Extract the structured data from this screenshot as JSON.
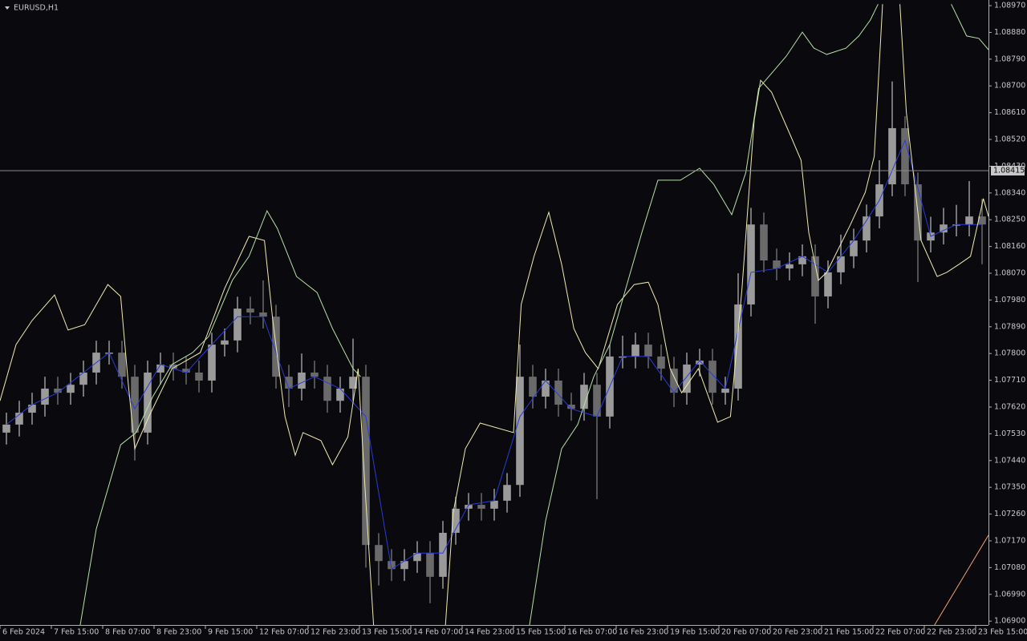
{
  "chart_data": {
    "type": "candlestick",
    "symbol": "EURUSD,H1",
    "open": [
      1.07534,
      1.07561,
      1.07601,
      1.07628,
      1.07682,
      1.07668,
      1.07695,
      1.07736,
      1.07803,
      1.07803,
      1.07722,
      1.07534,
      1.07736,
      1.07763,
      1.07749,
      1.07736,
      1.07709,
      1.0783,
      1.07844,
      1.07951,
      1.07938,
      1.07924,
      1.07722,
      1.07682,
      1.07736,
      1.07722,
      1.07641,
      1.07682,
      1.07722,
      1.07156,
      1.07102,
      1.07075,
      1.07102,
      1.07129,
      1.07049,
      1.07197,
      1.07278,
      1.07291,
      1.07278,
      1.07305,
      1.07358,
      1.07722,
      1.07655,
      1.07709,
      1.07628,
      1.07614,
      1.07695,
      1.07588,
      1.0779,
      1.0779,
      1.0783,
      1.0779,
      1.07749,
      1.07668,
      1.07763,
      1.07776,
      1.07668,
      1.07682,
      1.07965,
      1.08234,
      1.08113,
      1.08086,
      1.081,
      1.08127,
      1.07992,
      1.08073,
      1.08127,
      1.0818,
      1.08261,
      1.08369,
      1.08558,
      1.08369,
      1.0818,
      1.08207,
      1.08234,
      1.08234,
      1.08261
    ],
    "high": [
      1.07601,
      1.07641,
      1.07668,
      1.07722,
      1.07722,
      1.07735,
      1.07776,
      1.07843,
      1.07843,
      1.07843,
      1.07762,
      1.07776,
      1.07803,
      1.07803,
      1.07789,
      1.07776,
      1.0787,
      1.07884,
      1.07991,
      1.07991,
      1.08046,
      1.07964,
      1.07762,
      1.078,
      1.07776,
      1.07762,
      1.07722,
      1.0785,
      1.07762,
      1.07196,
      1.07142,
      1.07142,
      1.07169,
      1.07169,
      1.07237,
      1.07318,
      1.07331,
      1.07331,
      1.07345,
      1.07398,
      1.0783,
      1.07762,
      1.07749,
      1.07749,
      1.07668,
      1.07735,
      1.07735,
      1.0783,
      1.0786,
      1.0787,
      1.0787,
      1.0783,
      1.07789,
      1.07803,
      1.07816,
      1.07816,
      1.07722,
      1.0807,
      1.0829,
      1.08274,
      1.08153,
      1.0814,
      1.08167,
      1.08167,
      1.08113,
      1.082,
      1.0822,
      1.08301,
      1.0845,
      1.08715,
      1.08598,
      1.08409,
      1.0826,
      1.0829,
      1.083,
      1.0838,
      1.0832
    ],
    "low": [
      1.07494,
      1.07521,
      1.07561,
      1.07588,
      1.07628,
      1.07628,
      1.07655,
      1.07696,
      1.07763,
      1.07682,
      1.0744,
      1.07494,
      1.07696,
      1.07709,
      1.07696,
      1.07669,
      1.07669,
      1.0779,
      1.07804,
      1.07898,
      1.07884,
      1.07682,
      1.0762,
      1.07642,
      1.07682,
      1.07601,
      1.07601,
      1.07642,
      1.0708,
      1.0702,
      1.07035,
      1.07035,
      1.07062,
      1.0696,
      1.07009,
      1.07157,
      1.07238,
      1.07238,
      1.07238,
      1.07265,
      1.07318,
      1.07615,
      1.07615,
      1.07588,
      1.07574,
      1.07574,
      1.0731,
      1.07548,
      1.0775,
      1.0775,
      1.0775,
      1.07709,
      1.0762,
      1.07628,
      1.07723,
      1.07628,
      1.07628,
      1.07642,
      1.07925,
      1.08073,
      1.08046,
      1.08046,
      1.0806,
      1.079,
      1.07952,
      1.08033,
      1.08087,
      1.0814,
      1.08221,
      1.08329,
      1.08329,
      1.0804,
      1.0814,
      1.08167,
      1.08194,
      1.08194,
      1.081
    ],
    "close": [
      1.07561,
      1.07601,
      1.07628,
      1.07682,
      1.07668,
      1.07695,
      1.07736,
      1.07803,
      1.07803,
      1.07722,
      1.07534,
      1.07736,
      1.07763,
      1.07749,
      1.07736,
      1.07709,
      1.0783,
      1.07844,
      1.07951,
      1.07938,
      1.07924,
      1.07722,
      1.07682,
      1.07736,
      1.07722,
      1.07641,
      1.07682,
      1.07722,
      1.07156,
      1.07102,
      1.07075,
      1.07102,
      1.07129,
      1.07049,
      1.07197,
      1.07278,
      1.07291,
      1.07278,
      1.07305,
      1.07358,
      1.07722,
      1.07655,
      1.07709,
      1.07628,
      1.07614,
      1.07695,
      1.07588,
      1.0779,
      1.0779,
      1.0783,
      1.0779,
      1.07749,
      1.07668,
      1.07763,
      1.07776,
      1.07668,
      1.07682,
      1.07965,
      1.08234,
      1.08113,
      1.08086,
      1.081,
      1.08127,
      1.07992,
      1.08073,
      1.08127,
      1.0818,
      1.08261,
      1.08369,
      1.08558,
      1.08369,
      1.0818,
      1.08207,
      1.08234,
      1.08234,
      1.08261,
      1.08234
    ],
    "bull_color": "#9a9a9a",
    "bear_color": "#6a6a6a",
    "series": [
      {
        "color": "#2b3ad8",
        "x": [
          0,
          2,
          4,
          6,
          8,
          10,
          12,
          14,
          16,
          18,
          20,
          22,
          24,
          26,
          28,
          30,
          32,
          34,
          36,
          38,
          40,
          42,
          44,
          46,
          48,
          50,
          52,
          54,
          56,
          58,
          60,
          62,
          64,
          66,
          68,
          70,
          72,
          74,
          76
        ],
        "values": [
          1.07561,
          1.07628,
          1.07668,
          1.07736,
          1.07803,
          1.07614,
          1.07763,
          1.07736,
          1.0783,
          1.07924,
          1.07924,
          1.07682,
          1.07722,
          1.07682,
          1.07588,
          1.07075,
          1.07129,
          1.07129,
          1.07291,
          1.07305,
          1.07588,
          1.07709,
          1.07614,
          1.07588,
          1.0779,
          1.0779,
          1.07668,
          1.07776,
          1.07682,
          1.08073,
          1.08086,
          1.08127,
          1.08073,
          1.0818,
          1.08315,
          1.08517,
          1.08194,
          1.08234,
          1.08234
        ]
      },
      {
        "color": "#f0eab0",
        "x": [
          -0.5,
          0.75,
          2,
          3.75,
          4.8,
          6.1,
          7.9,
          8.9,
          9.5,
          10,
          11.1,
          12.9,
          15.1,
          17,
          18.9,
          20.1,
          20.75,
          21.7,
          22.5,
          23.1,
          24.5,
          25.4,
          26.6,
          27.4,
          27.9,
          28.6,
          31,
          34.2,
          34.8,
          35.75,
          36.9,
          39.5,
          40.1,
          41.1,
          42.25,
          43.25,
          44.2,
          45.1,
          46.1,
          47.6,
          48.9,
          50,
          50.75,
          51.7,
          52.6,
          53.9,
          55.4,
          56.4,
          57.3,
          58.25,
          58.75,
          59.6,
          61.1,
          61.9,
          62.5,
          63.25,
          63.9,
          65.75,
          66.9,
          67.6,
          68.25,
          69,
          69.6,
          70.1,
          71.25,
          72.5,
          73.25,
          74.2,
          75.1,
          76.1,
          76.5
        ],
        "values": [
          1.07641,
          1.0783,
          1.07911,
          1.07997,
          1.07879,
          1.07897,
          1.08032,
          1.07992,
          1.07695,
          1.0748,
          1.07588,
          1.07749,
          1.07803,
          1.08019,
          1.08194,
          1.0818,
          1.07911,
          1.07588,
          1.07458,
          1.07534,
          1.07507,
          1.07426,
          1.0752,
          1.07749,
          1.07372,
          1.06887,
          null,
          1.06887,
          1.07264,
          1.0748,
          1.07566,
          1.07534,
          1.07965,
          1.08127,
          1.08275,
          1.081,
          1.07884,
          1.07803,
          1.07749,
          1.07965,
          1.08032,
          1.0804,
          1.07965,
          1.07749,
          1.07668,
          1.07749,
          1.07569,
          1.07588,
          1.08019,
          1.08585,
          1.08719,
          1.08679,
          1.08531,
          1.0845,
          1.08207,
          1.08046,
          1.08073,
          1.08234,
          1.08342,
          1.08463,
          1.08975,
          null,
          1.08975,
          1.08612,
          1.0818,
          1.08059,
          1.08073,
          1.081,
          1.08127,
          1.08321,
          1.08261
        ]
      },
      {
        "color": "#b8e0a8",
        "x": [
          5.75,
          7,
          8.9,
          10.1,
          11.4,
          12.9,
          14.5,
          15.75,
          17.6,
          18.9,
          20.3,
          21.1,
          22.6,
          24.2,
          25.4,
          27,
          27.6,
          34,
          40.75,
          42,
          43.25,
          44.5,
          45.75,
          47,
          48.25,
          49.5,
          50.75,
          52.5,
          54,
          55.1,
          56.5,
          57.6,
          58.6,
          60.75,
          62,
          62.9,
          63.9,
          65.4,
          66.4,
          67.3,
          67.9,
          70,
          73.6,
          74.8,
          75.75,
          76.5
        ],
        "values": [
          1.06887,
          1.0721,
          1.07493,
          1.07534,
          1.07655,
          1.07763,
          1.07803,
          1.07857,
          1.08046,
          1.08127,
          1.0828,
          1.08221,
          1.08059,
          1.08005,
          1.07884,
          1.07749,
          1.07722,
          null,
          1.06887,
          1.07237,
          1.0748,
          1.07561,
          1.07722,
          1.0783,
          1.08019,
          1.08207,
          1.08383,
          1.08383,
          1.08423,
          1.08369,
          1.08267,
          1.08409,
          1.08692,
          1.088,
          1.08881,
          1.08827,
          1.08806,
          1.08827,
          1.08868,
          1.08922,
          1.08975,
          null,
          1.08975,
          1.08868,
          1.0886,
          1.08822
        ]
      },
      {
        "color": "#f0a070",
        "x": [
          72.3,
          76.5
        ],
        "values": [
          1.06887,
          1.07189
        ]
      }
    ],
    "current_price": {
      "value": 1.08415,
      "label": "1.08415"
    },
    "xlim": [
      -0.5,
      76.5
    ],
    "ylim": [
      1.06887,
      1.08989
    ],
    "yticks": [
      {
        "value": 1.0897,
        "label": "1.08970"
      },
      {
        "value": 1.0888,
        "label": "1.08880"
      },
      {
        "value": 1.0879,
        "label": "1.08790"
      },
      {
        "value": 1.087,
        "label": "1.08700"
      },
      {
        "value": 1.0861,
        "label": "1.08610"
      },
      {
        "value": 1.0852,
        "label": "1.08520"
      },
      {
        "value": 1.0843,
        "label": "1.08430"
      },
      {
        "value": 1.0834,
        "label": "1.08340"
      },
      {
        "value": 1.0825,
        "label": "1.08250"
      },
      {
        "value": 1.0816,
        "label": "1.08160"
      },
      {
        "value": 1.0807,
        "label": "1.08070"
      },
      {
        "value": 1.0798,
        "label": "1.07980"
      },
      {
        "value": 1.0789,
        "label": "1.07890"
      },
      {
        "value": 1.078,
        "label": "1.07800"
      },
      {
        "value": 1.0771,
        "label": "1.07710"
      },
      {
        "value": 1.0762,
        "label": "1.07620"
      },
      {
        "value": 1.0753,
        "label": "1.07530"
      },
      {
        "value": 1.0744,
        "label": "1.07440"
      },
      {
        "value": 1.0735,
        "label": "1.07350"
      },
      {
        "value": 1.0726,
        "label": "1.07260"
      },
      {
        "value": 1.0717,
        "label": "1.07170"
      },
      {
        "value": 1.0708,
        "label": "1.07080"
      },
      {
        "value": 1.0699,
        "label": "1.06990"
      },
      {
        "value": 1.069,
        "label": "1.06900"
      }
    ],
    "xticks": [
      {
        "value": -0.5,
        "label": "6 Feb 2024"
      },
      {
        "value": 3.5,
        "label": "7 Feb 15:00"
      },
      {
        "value": 7.5,
        "label": "8 Feb 07:00"
      },
      {
        "value": 11.5,
        "label": "8 Feb 23:00"
      },
      {
        "value": 15.5,
        "label": "9 Feb 15:00"
      },
      {
        "value": 19.5,
        "label": "12 Feb 07:00"
      },
      {
        "value": 23.5,
        "label": "12 Feb 23:00"
      },
      {
        "value": 27.5,
        "label": "13 Feb 15:00"
      },
      {
        "value": 31.5,
        "label": "14 Feb 07:00"
      },
      {
        "value": 35.5,
        "label": "14 Feb 23:00"
      },
      {
        "value": 39.5,
        "label": "15 Feb 15:00"
      },
      {
        "value": 43.5,
        "label": "16 Feb 07:00"
      },
      {
        "value": 47.5,
        "label": "16 Feb 23:00"
      },
      {
        "value": 51.5,
        "label": "19 Feb 15:00"
      },
      {
        "value": 55.5,
        "label": "20 Feb 07:00"
      },
      {
        "value": 59.5,
        "label": "20 Feb 23:00"
      },
      {
        "value": 63.5,
        "label": "21 Feb 15:00"
      },
      {
        "value": 67.5,
        "label": "22 Feb 07:00"
      },
      {
        "value": 71.5,
        "label": "22 Feb 23:00"
      },
      {
        "value": 75.5,
        "label": "23 Feb 15:00"
      }
    ]
  }
}
